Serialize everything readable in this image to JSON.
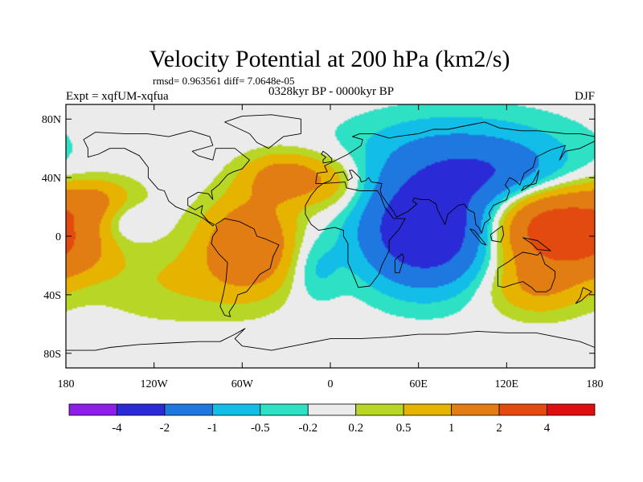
{
  "chart_data": {
    "type": "heatmap",
    "title": "Velocity Potential at 200 hPa (km2/s)",
    "stats_label": "rmsd= 0.963561 diff= 7.0648e-05",
    "experiment_label": "Expt = xqfUM-xqfua",
    "period_label": "0328kyr BP - 0000kyr BP",
    "season_label": "DJF",
    "xlim": [
      -180,
      180
    ],
    "ylim": [
      -90,
      90
    ],
    "x_ticks": [
      {
        "value": -180,
        "label": "180"
      },
      {
        "value": -120,
        "label": "120W"
      },
      {
        "value": -60,
        "label": "60W"
      },
      {
        "value": 0,
        "label": "0"
      },
      {
        "value": 60,
        "label": "60E"
      },
      {
        "value": 120,
        "label": "120E"
      },
      {
        "value": 180,
        "label": "180"
      }
    ],
    "y_ticks": [
      {
        "value": 80,
        "label": "80N"
      },
      {
        "value": 40,
        "label": "40N"
      },
      {
        "value": 0,
        "label": "0"
      },
      {
        "value": -40,
        "label": "40S"
      },
      {
        "value": -80,
        "label": "80S"
      }
    ],
    "colorbar": {
      "colors": [
        "#8f1fe8",
        "#2a2bd6",
        "#1e78e0",
        "#12bde8",
        "#2ee0c4",
        "#ebebeb",
        "#b8d626",
        "#e6b300",
        "#e27d14",
        "#e24a10",
        "#e00f0f"
      ],
      "boundaries": [
        -4,
        -2,
        -1,
        -0.5,
        -0.2,
        0.2,
        0.5,
        1,
        2,
        4
      ],
      "labels": [
        "-4",
        "-2",
        "-1",
        "-0.5",
        "-0.2",
        "0.2",
        "0.5",
        "1",
        "2",
        "4"
      ]
    },
    "field_features": [
      {
        "lon": 65,
        "lat": 5,
        "amp": -3.4,
        "slon": 30,
        "slat": 26
      },
      {
        "lon": 110,
        "lat": 42,
        "amp": -1.4,
        "slon": 35,
        "slat": 14
      },
      {
        "lon": 88,
        "lat": 62,
        "amp": -0.8,
        "slon": 55,
        "slat": 18
      },
      {
        "lon": -10,
        "lat": -22,
        "amp": -0.6,
        "slon": 12,
        "slat": 16
      },
      {
        "lon": -140,
        "lat": 12,
        "amp": -0.7,
        "slon": 14,
        "slat": 10
      },
      {
        "lon": 150,
        "lat": 5,
        "amp": 2.6,
        "slon": 28,
        "slat": 20
      },
      {
        "lon": -55,
        "lat": -5,
        "amp": 1.8,
        "slon": 22,
        "slat": 22
      },
      {
        "lon": -30,
        "lat": 40,
        "amp": 1.4,
        "slon": 20,
        "slat": 12
      },
      {
        "lon": -160,
        "lat": 22,
        "amp": 1.2,
        "slon": 22,
        "slat": 12
      },
      {
        "lon": -175,
        "lat": -10,
        "amp": 0.9,
        "slon": 20,
        "slat": 14
      },
      {
        "lon": -105,
        "lat": -30,
        "amp": 0.5,
        "slon": 40,
        "slat": 20
      },
      {
        "lon": 140,
        "lat": -35,
        "amp": 0.9,
        "slon": 24,
        "slat": 14
      },
      {
        "lon": 5,
        "lat": 35,
        "amp": 0.6,
        "slon": 16,
        "slat": 14
      }
    ]
  }
}
